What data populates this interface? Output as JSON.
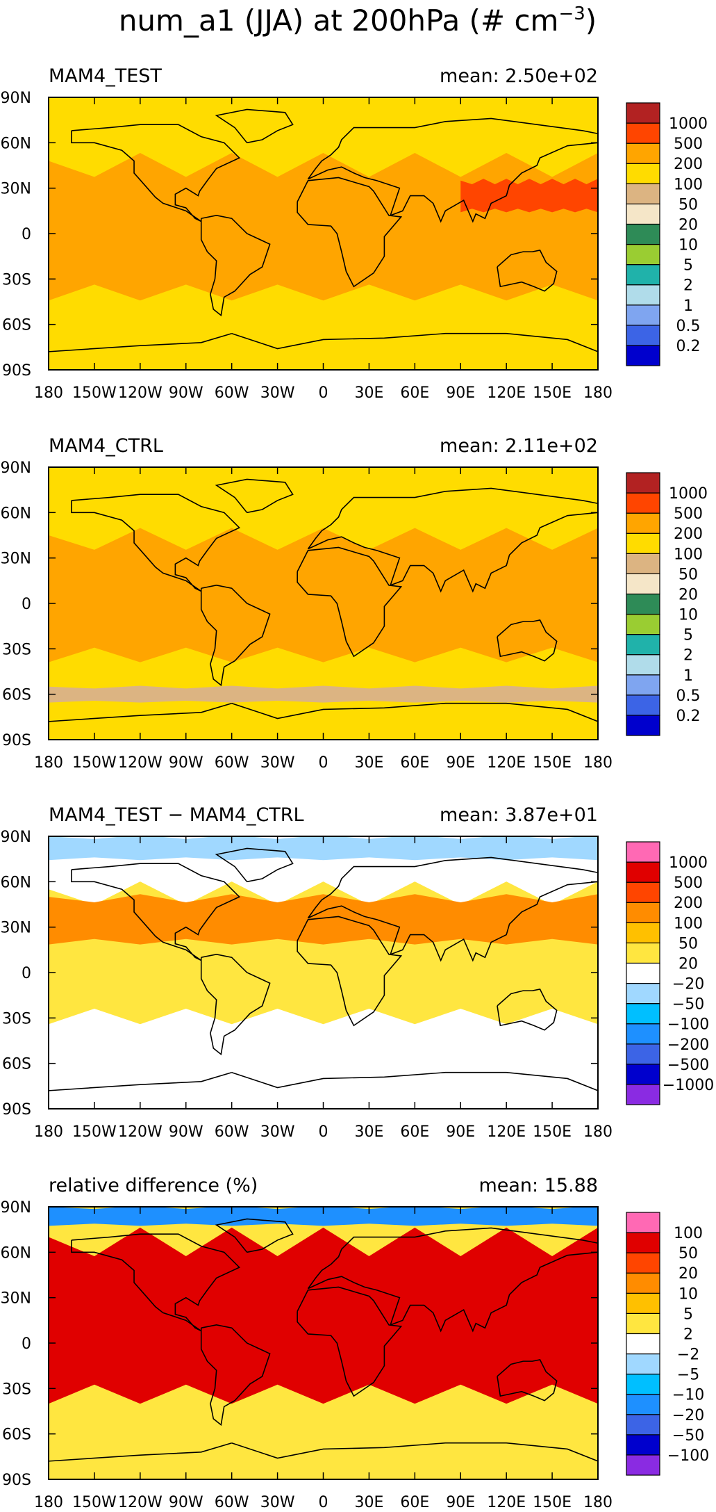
{
  "figure_title": "num_a1 (JJA) at 200hPa (# cm",
  "figure_title_exp": "−3",
  "figure_title_tail": ")",
  "x_ticks": [
    "180",
    "150W",
    "120W",
    "90W",
    "60W",
    "30W",
    "0",
    "30E",
    "60E",
    "90E",
    "120E",
    "150E",
    "180"
  ],
  "y_ticks": [
    "90N",
    "60N",
    "30N",
    "0",
    "30S",
    "60S",
    "90S"
  ],
  "chart_data": [
    {
      "type": "heatmap",
      "title": "MAM4_TEST",
      "mean_label": "mean: 2.50e+02",
      "xlim": [
        -180,
        180
      ],
      "ylim": [
        -90,
        90
      ],
      "colorbar": {
        "colors": [
          "#0000cd",
          "#3c64e6",
          "#7fa5f0",
          "#b0dcea",
          "#20b2aa",
          "#9acd32",
          "#2e8b57",
          "#f5e6c8",
          "#dcb482",
          "#ffdc00",
          "#ffa500",
          "#ff4500",
          "#b22222"
        ],
        "labels": [
          "0.2",
          "0.5",
          "1",
          "2",
          "5",
          "10",
          "20",
          "50",
          "100",
          "200",
          "500",
          "1000"
        ]
      },
      "background_color": "#ffdc00",
      "bands": [
        {
          "lat": [
            -40,
            48
          ],
          "color": "#ffa500"
        },
        {
          "lat": [
            15,
            35
          ],
          "lon": [
            90,
            180
          ],
          "color": "#ff4500"
        }
      ]
    },
    {
      "type": "heatmap",
      "title": "MAM4_CTRL",
      "mean_label": "mean: 2.11e+02",
      "xlim": [
        -180,
        180
      ],
      "ylim": [
        -90,
        90
      ],
      "colorbar": {
        "colors": [
          "#0000cd",
          "#3c64e6",
          "#7fa5f0",
          "#b0dcea",
          "#20b2aa",
          "#9acd32",
          "#2e8b57",
          "#f5e6c8",
          "#dcb482",
          "#ffdc00",
          "#ffa500",
          "#ff4500",
          "#b22222"
        ],
        "labels": [
          "0.2",
          "0.5",
          "1",
          "2",
          "5",
          "10",
          "20",
          "50",
          "100",
          "200",
          "500",
          "1000"
        ]
      },
      "background_color": "#ffdc00",
      "bands": [
        {
          "lat": [
            -35,
            45
          ],
          "color": "#ffa500"
        },
        {
          "lat": [
            -65,
            -55
          ],
          "color": "#dcb482"
        }
      ]
    },
    {
      "type": "heatmap",
      "title": "MAM4_TEST − MAM4_CTRL",
      "mean_label": "mean: 3.87e+01",
      "xlim": [
        -180,
        180
      ],
      "ylim": [
        -90,
        90
      ],
      "colorbar": {
        "colors": [
          "#8a2be2",
          "#0000cd",
          "#3c64e6",
          "#1e90ff",
          "#00bfff",
          "#a0d8ff",
          "#ffffff",
          "#ffe640",
          "#ffc000",
          "#ff8c00",
          "#ff4500",
          "#e00000",
          "#ff69b4"
        ],
        "labels": [
          "−1000",
          "−500",
          "−200",
          "−100",
          "−50",
          "−20",
          "20",
          "50",
          "100",
          "200",
          "500",
          "1000"
        ]
      },
      "background_color": "#ffffff",
      "bands": [
        {
          "lat": [
            -30,
            55
          ],
          "color": "#ffe640"
        },
        {
          "lat": [
            20,
            50
          ],
          "color": "#ff8c00"
        },
        {
          "lat": [
            75,
            90
          ],
          "color": "#a0d8ff"
        }
      ]
    },
    {
      "type": "heatmap",
      "title": "relative difference (%)",
      "mean_label": "mean: 15.88",
      "xlim": [
        -180,
        180
      ],
      "ylim": [
        -90,
        90
      ],
      "colorbar": {
        "colors": [
          "#8a2be2",
          "#0000cd",
          "#3c64e6",
          "#1e90ff",
          "#00bfff",
          "#a0d8ff",
          "#ffffff",
          "#ffe640",
          "#ffc000",
          "#ff8c00",
          "#ff4500",
          "#e00000",
          "#ff69b4"
        ],
        "labels": [
          "−100",
          "−50",
          "−20",
          "−10",
          "−5",
          "−2",
          "2",
          "5",
          "10",
          "20",
          "50",
          "100"
        ]
      },
      "background_color": "#ffe640",
      "bands": [
        {
          "lat": [
            -35,
            70
          ],
          "color": "#e00000"
        },
        {
          "lat": [
            78,
            90
          ],
          "color": "#1e90ff"
        }
      ]
    }
  ]
}
